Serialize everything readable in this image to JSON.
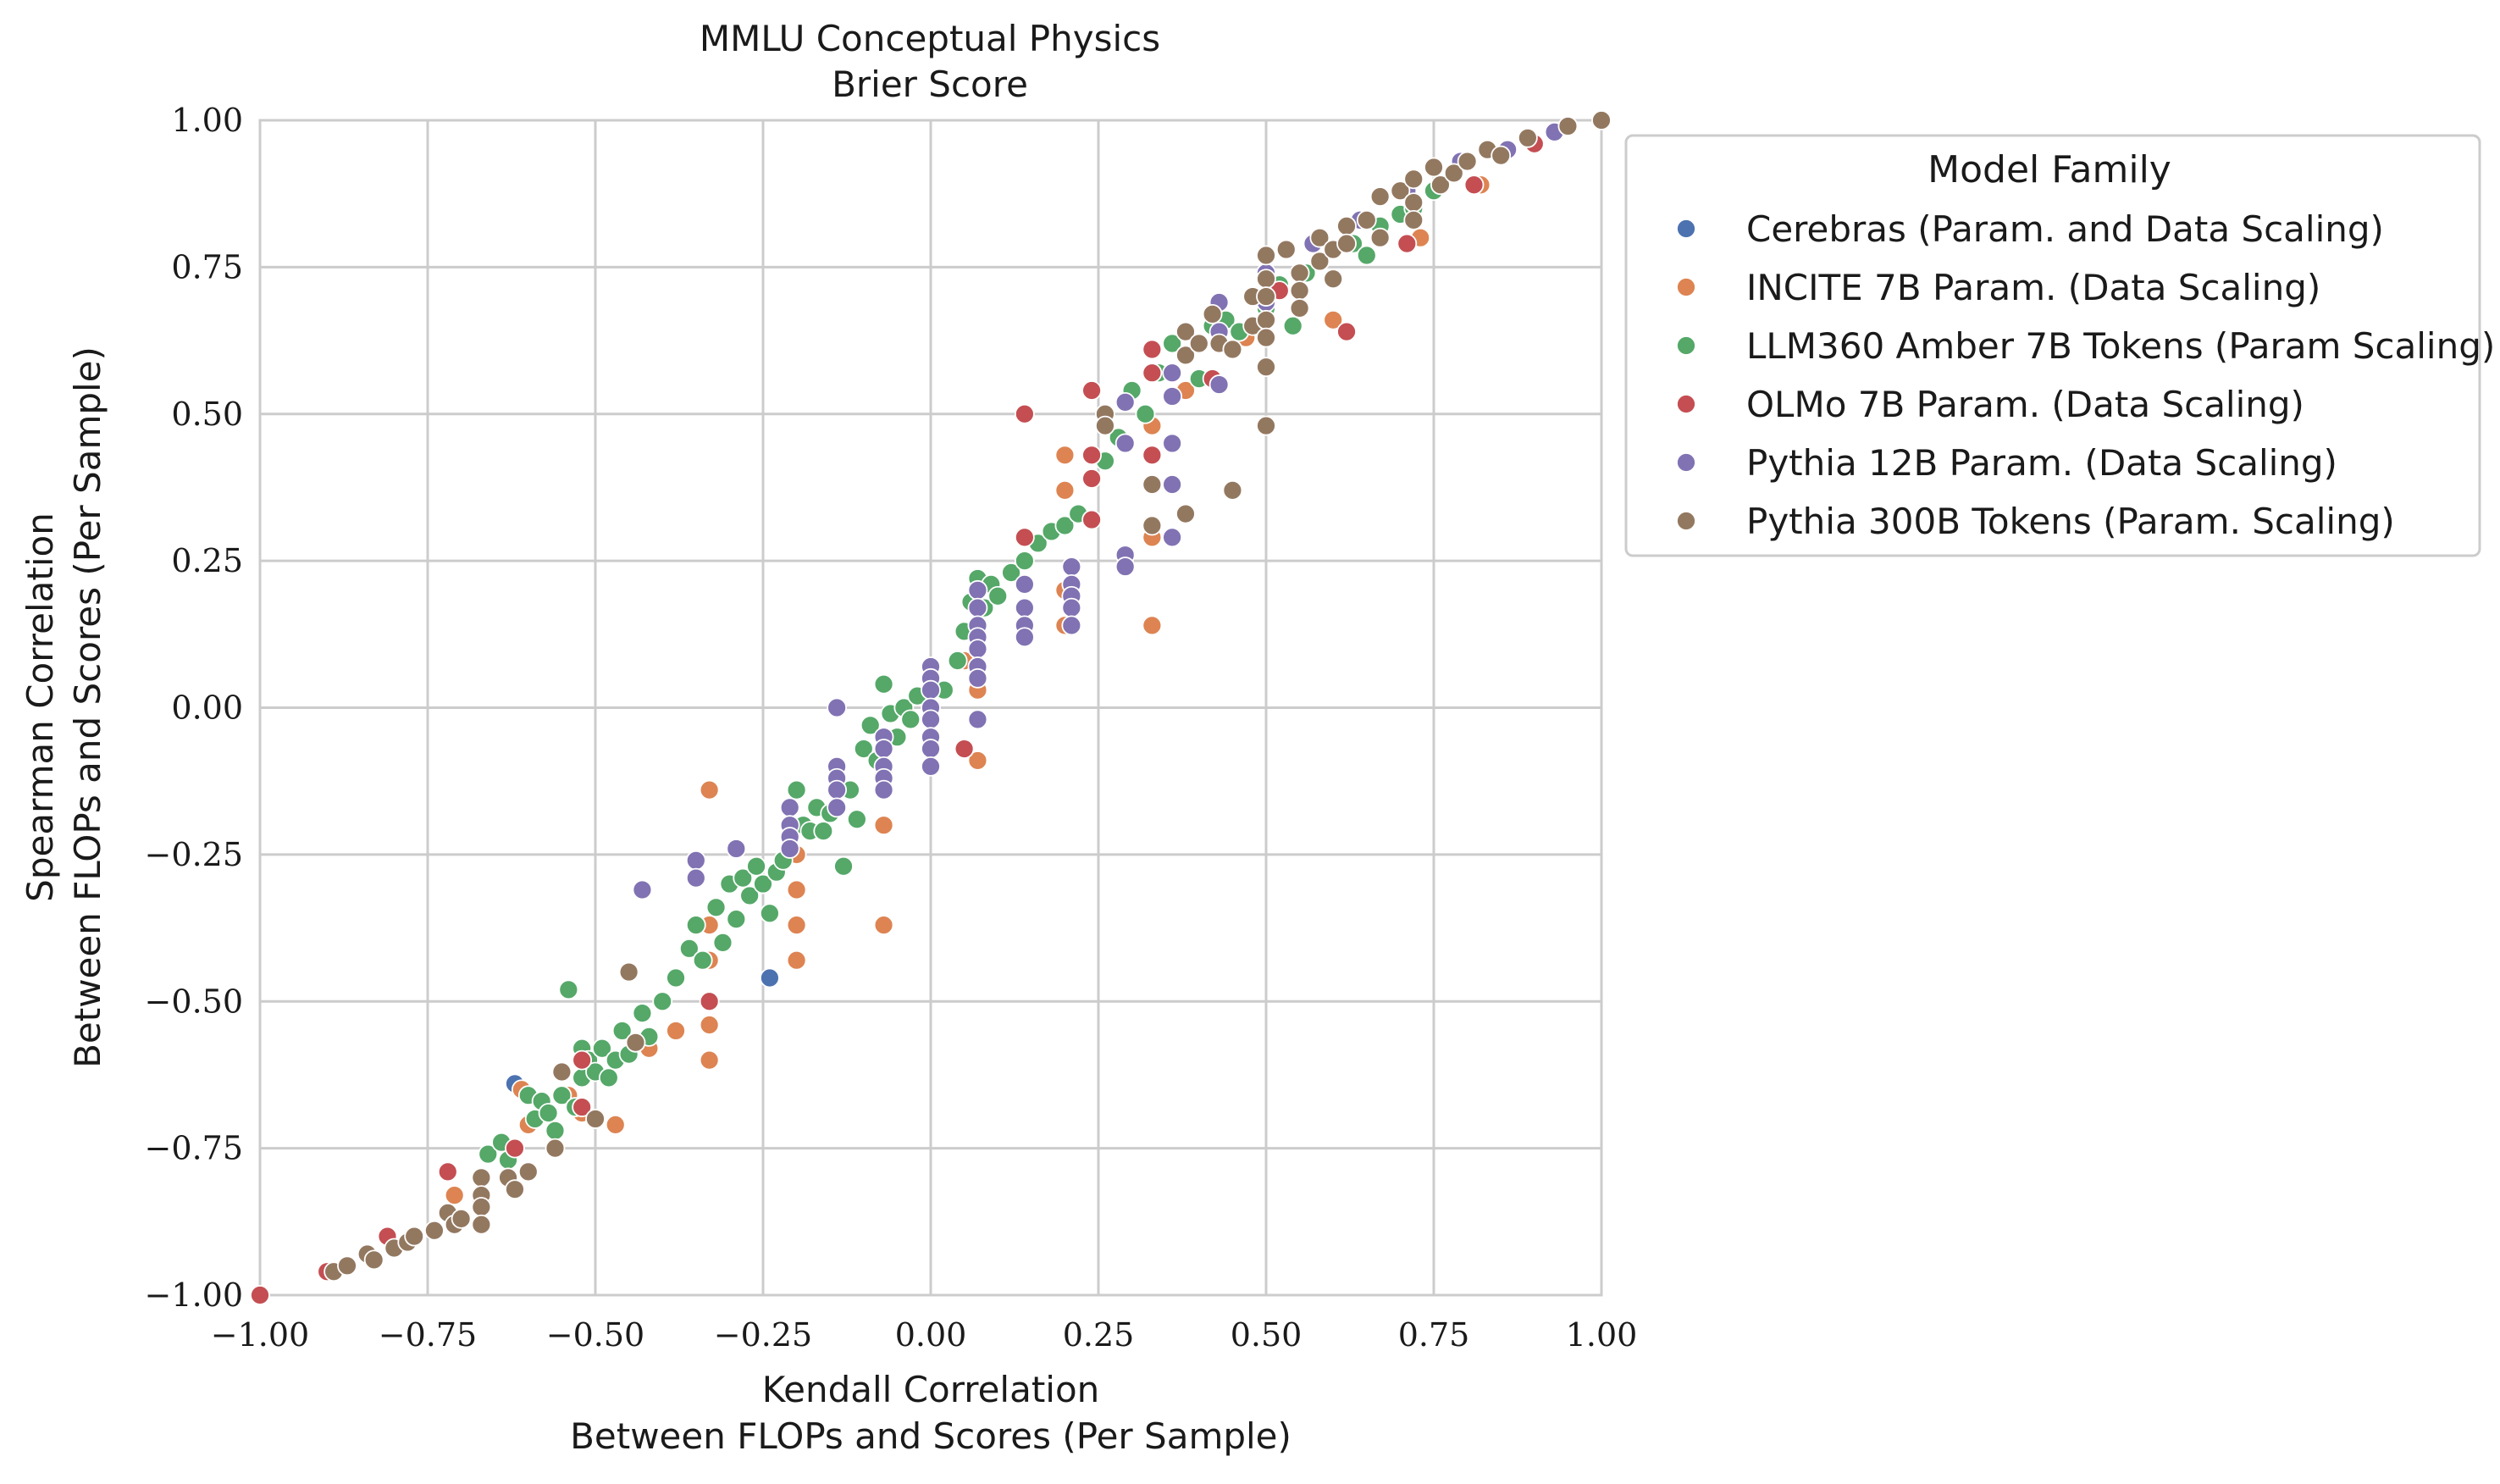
{
  "chart_data": {
    "type": "scatter",
    "title": "MMLU Conceptual Physics",
    "subtitle": "Brier Score",
    "xlabel_line1": "Kendall Correlation",
    "xlabel_line2": "Between FLOPs and Scores (Per Sample)",
    "ylabel_line1": "Spearman Correlation",
    "ylabel_line2": "Between FLOPs and Scores (Per Sample)",
    "xlim": [
      -1.0,
      1.0
    ],
    "ylim": [
      -1.0,
      1.0
    ],
    "xticks": [
      "−1.00",
      "−0.75",
      "−0.50",
      "−0.25",
      "0.00",
      "0.25",
      "0.50",
      "0.75",
      "1.00"
    ],
    "yticks": [
      "−1.00",
      "−0.75",
      "−0.50",
      "−0.25",
      "0.00",
      "0.25",
      "0.50",
      "0.75",
      "1.00"
    ],
    "grid": true,
    "legend_title": "Model Family",
    "legend_position": "outside-right",
    "series": [
      {
        "name": "Cerebras (Param. and Data Scaling)",
        "color": "#4c72b0",
        "points": [
          [
            -0.62,
            -0.64
          ],
          [
            -0.24,
            -0.46
          ]
        ]
      },
      {
        "name": "INCITE 7B Param. (Data Scaling)",
        "color": "#dd8452",
        "points": [
          [
            -0.71,
            -0.83
          ],
          [
            -0.67,
            -0.84
          ],
          [
            -0.61,
            -0.65
          ],
          [
            -0.6,
            -0.71
          ],
          [
            -0.54,
            -0.66
          ],
          [
            -0.52,
            -0.69
          ],
          [
            -0.47,
            -0.71
          ],
          [
            -0.42,
            -0.58
          ],
          [
            -0.38,
            -0.55
          ],
          [
            -0.33,
            -0.14
          ],
          [
            -0.33,
            -0.37
          ],
          [
            -0.33,
            -0.43
          ],
          [
            -0.33,
            -0.54
          ],
          [
            -0.33,
            -0.6
          ],
          [
            -0.2,
            -0.31
          ],
          [
            -0.2,
            -0.37
          ],
          [
            -0.2,
            -0.43
          ],
          [
            -0.2,
            -0.25
          ],
          [
            -0.07,
            -0.2
          ],
          [
            -0.07,
            -0.37
          ],
          [
            -0.07,
            -0.11
          ],
          [
            0.07,
            -0.09
          ],
          [
            0.07,
            0.03
          ],
          [
            0.05,
            0.08
          ],
          [
            0.2,
            0.14
          ],
          [
            0.2,
            0.2
          ],
          [
            0.2,
            0.37
          ],
          [
            0.2,
            0.43
          ],
          [
            0.33,
            0.48
          ],
          [
            0.33,
            0.29
          ],
          [
            0.33,
            0.14
          ],
          [
            0.38,
            0.54
          ],
          [
            0.47,
            0.63
          ],
          [
            0.6,
            0.66
          ],
          [
            0.73,
            0.8
          ],
          [
            0.82,
            0.89
          ]
        ]
      },
      {
        "name": "LLM360 Amber 7B Tokens (Param Scaling)",
        "color": "#55a868",
        "points": [
          [
            -0.66,
            -0.76
          ],
          [
            -0.64,
            -0.74
          ],
          [
            -0.63,
            -0.77
          ],
          [
            -0.6,
            -0.66
          ],
          [
            -0.59,
            -0.7
          ],
          [
            -0.58,
            -0.67
          ],
          [
            -0.57,
            -0.69
          ],
          [
            -0.56,
            -0.72
          ],
          [
            -0.55,
            -0.66
          ],
          [
            -0.54,
            -0.48
          ],
          [
            -0.53,
            -0.68
          ],
          [
            -0.52,
            -0.58
          ],
          [
            -0.52,
            -0.63
          ],
          [
            -0.51,
            -0.6
          ],
          [
            -0.5,
            -0.62
          ],
          [
            -0.49,
            -0.58
          ],
          [
            -0.48,
            -0.63
          ],
          [
            -0.47,
            -0.6
          ],
          [
            -0.46,
            -0.55
          ],
          [
            -0.45,
            -0.59
          ],
          [
            -0.43,
            -0.52
          ],
          [
            -0.42,
            -0.56
          ],
          [
            -0.4,
            -0.5
          ],
          [
            -0.38,
            -0.46
          ],
          [
            -0.36,
            -0.41
          ],
          [
            -0.35,
            -0.37
          ],
          [
            -0.34,
            -0.43
          ],
          [
            -0.32,
            -0.34
          ],
          [
            -0.31,
            -0.4
          ],
          [
            -0.3,
            -0.3
          ],
          [
            -0.29,
            -0.36
          ],
          [
            -0.28,
            -0.29
          ],
          [
            -0.27,
            -0.32
          ],
          [
            -0.26,
            -0.27
          ],
          [
            -0.25,
            -0.3
          ],
          [
            -0.24,
            -0.35
          ],
          [
            -0.23,
            -0.28
          ],
          [
            -0.22,
            -0.26
          ],
          [
            -0.21,
            -0.22
          ],
          [
            -0.2,
            -0.14
          ],
          [
            -0.19,
            -0.2
          ],
          [
            -0.18,
            -0.21
          ],
          [
            -0.17,
            -0.17
          ],
          [
            -0.16,
            -0.21
          ],
          [
            -0.15,
            -0.18
          ],
          [
            -0.14,
            -0.12
          ],
          [
            -0.13,
            -0.27
          ],
          [
            -0.12,
            -0.14
          ],
          [
            -0.11,
            -0.19
          ],
          [
            -0.1,
            -0.07
          ],
          [
            -0.09,
            -0.03
          ],
          [
            -0.08,
            -0.09
          ],
          [
            -0.07,
            0.04
          ],
          [
            -0.06,
            -0.01
          ],
          [
            -0.05,
            -0.05
          ],
          [
            -0.04,
            0.0
          ],
          [
            -0.03,
            -0.02
          ],
          [
            -0.02,
            0.02
          ],
          [
            0.0,
            0.05
          ],
          [
            0.02,
            0.03
          ],
          [
            0.04,
            0.08
          ],
          [
            0.05,
            0.13
          ],
          [
            0.06,
            0.18
          ],
          [
            0.07,
            0.22
          ],
          [
            0.08,
            0.17
          ],
          [
            0.09,
            0.21
          ],
          [
            0.1,
            0.19
          ],
          [
            0.12,
            0.23
          ],
          [
            0.14,
            0.25
          ],
          [
            0.16,
            0.28
          ],
          [
            0.18,
            0.3
          ],
          [
            0.2,
            0.31
          ],
          [
            0.22,
            0.33
          ],
          [
            0.26,
            0.42
          ],
          [
            0.28,
            0.46
          ],
          [
            0.3,
            0.54
          ],
          [
            0.32,
            0.5
          ],
          [
            0.34,
            0.57
          ],
          [
            0.36,
            0.62
          ],
          [
            0.38,
            0.6
          ],
          [
            0.4,
            0.56
          ],
          [
            0.42,
            0.65
          ],
          [
            0.44,
            0.66
          ],
          [
            0.46,
            0.64
          ],
          [
            0.48,
            0.7
          ],
          [
            0.5,
            0.68
          ],
          [
            0.52,
            0.72
          ],
          [
            0.54,
            0.65
          ],
          [
            0.56,
            0.74
          ],
          [
            0.58,
            0.76
          ],
          [
            0.6,
            0.73
          ],
          [
            0.63,
            0.79
          ],
          [
            0.65,
            0.77
          ],
          [
            0.67,
            0.82
          ],
          [
            0.7,
            0.84
          ],
          [
            0.72,
            0.85
          ],
          [
            0.75,
            0.88
          ]
        ]
      },
      {
        "name": "OLMo 7B Param. (Data Scaling)",
        "color": "#c44e52",
        "points": [
          [
            -1.0,
            -1.0
          ],
          [
            -0.9,
            -0.96
          ],
          [
            -0.81,
            -0.9
          ],
          [
            -0.72,
            -0.79
          ],
          [
            -0.62,
            -0.75
          ],
          [
            -0.52,
            -0.6
          ],
          [
            -0.52,
            -0.68
          ],
          [
            -0.33,
            -0.5
          ],
          [
            0.05,
            -0.07
          ],
          [
            0.07,
            0.14
          ],
          [
            0.14,
            0.5
          ],
          [
            0.14,
            0.29
          ],
          [
            0.24,
            0.54
          ],
          [
            0.24,
            0.43
          ],
          [
            0.24,
            0.39
          ],
          [
            0.24,
            0.32
          ],
          [
            0.33,
            0.61
          ],
          [
            0.33,
            0.57
          ],
          [
            0.33,
            0.43
          ],
          [
            0.42,
            0.56
          ],
          [
            0.52,
            0.71
          ],
          [
            0.62,
            0.64
          ],
          [
            0.71,
            0.79
          ],
          [
            0.81,
            0.89
          ],
          [
            0.9,
            0.96
          ]
        ]
      },
      {
        "name": "Pythia 12B Param. (Data Scaling)",
        "color": "#8172b3",
        "points": [
          [
            -0.43,
            -0.31
          ],
          [
            -0.35,
            -0.26
          ],
          [
            -0.35,
            -0.29
          ],
          [
            -0.29,
            -0.24
          ],
          [
            -0.21,
            -0.17
          ],
          [
            -0.21,
            -0.2
          ],
          [
            -0.21,
            -0.22
          ],
          [
            -0.21,
            -0.24
          ],
          [
            -0.14,
            0.0
          ],
          [
            -0.14,
            -0.1
          ],
          [
            -0.14,
            -0.12
          ],
          [
            -0.14,
            -0.14
          ],
          [
            -0.14,
            -0.17
          ],
          [
            -0.07,
            -0.05
          ],
          [
            -0.07,
            -0.07
          ],
          [
            -0.07,
            -0.1
          ],
          [
            -0.07,
            -0.12
          ],
          [
            -0.07,
            -0.14
          ],
          [
            0.0,
            0.07
          ],
          [
            0.0,
            0.05
          ],
          [
            0.0,
            0.03
          ],
          [
            0.0,
            0.0
          ],
          [
            0.0,
            -0.02
          ],
          [
            0.0,
            -0.05
          ],
          [
            0.0,
            -0.07
          ],
          [
            0.0,
            -0.1
          ],
          [
            0.07,
            0.2
          ],
          [
            0.07,
            0.17
          ],
          [
            0.07,
            0.14
          ],
          [
            0.07,
            0.12
          ],
          [
            0.07,
            0.1
          ],
          [
            0.07,
            0.07
          ],
          [
            0.07,
            0.05
          ],
          [
            0.07,
            -0.02
          ],
          [
            0.14,
            0.21
          ],
          [
            0.14,
            0.17
          ],
          [
            0.14,
            0.14
          ],
          [
            0.14,
            0.12
          ],
          [
            0.21,
            0.24
          ],
          [
            0.21,
            0.21
          ],
          [
            0.21,
            0.19
          ],
          [
            0.21,
            0.17
          ],
          [
            0.21,
            0.14
          ],
          [
            0.29,
            0.52
          ],
          [
            0.29,
            0.45
          ],
          [
            0.29,
            0.26
          ],
          [
            0.29,
            0.24
          ],
          [
            0.36,
            0.57
          ],
          [
            0.36,
            0.53
          ],
          [
            0.36,
            0.45
          ],
          [
            0.36,
            0.38
          ],
          [
            0.36,
            0.29
          ],
          [
            0.43,
            0.69
          ],
          [
            0.43,
            0.64
          ],
          [
            0.43,
            0.55
          ],
          [
            0.5,
            0.74
          ],
          [
            0.5,
            0.69
          ],
          [
            0.57,
            0.79
          ],
          [
            0.64,
            0.83
          ],
          [
            0.71,
            0.88
          ],
          [
            0.79,
            0.93
          ],
          [
            0.86,
            0.95
          ],
          [
            0.93,
            0.98
          ]
        ]
      },
      {
        "name": "Pythia 300B Tokens (Param. Scaling)",
        "color": "#937860",
        "points": [
          [
            -0.89,
            -0.96
          ],
          [
            -0.87,
            -0.95
          ],
          [
            -0.84,
            -0.93
          ],
          [
            -0.83,
            -0.94
          ],
          [
            -0.8,
            -0.92
          ],
          [
            -0.78,
            -0.91
          ],
          [
            -0.77,
            -0.9
          ],
          [
            -0.74,
            -0.89
          ],
          [
            -0.72,
            -0.86
          ],
          [
            -0.71,
            -0.88
          ],
          [
            -0.7,
            -0.87
          ],
          [
            -0.67,
            -0.8
          ],
          [
            -0.67,
            -0.83
          ],
          [
            -0.67,
            -0.85
          ],
          [
            -0.67,
            -0.88
          ],
          [
            -0.63,
            -0.8
          ],
          [
            -0.62,
            -0.82
          ],
          [
            -0.6,
            -0.79
          ],
          [
            -0.56,
            -0.75
          ],
          [
            -0.55,
            -0.62
          ],
          [
            -0.5,
            -0.7
          ],
          [
            -0.45,
            -0.45
          ],
          [
            -0.44,
            -0.57
          ],
          [
            0.26,
            0.5
          ],
          [
            0.26,
            0.48
          ],
          [
            0.33,
            0.38
          ],
          [
            0.33,
            0.31
          ],
          [
            0.38,
            0.33
          ],
          [
            0.38,
            0.6
          ],
          [
            0.38,
            0.64
          ],
          [
            0.4,
            0.62
          ],
          [
            0.42,
            0.67
          ],
          [
            0.43,
            0.62
          ],
          [
            0.45,
            0.37
          ],
          [
            0.45,
            0.61
          ],
          [
            0.48,
            0.65
          ],
          [
            0.48,
            0.7
          ],
          [
            0.5,
            0.77
          ],
          [
            0.5,
            0.73
          ],
          [
            0.5,
            0.7
          ],
          [
            0.5,
            0.66
          ],
          [
            0.5,
            0.63
          ],
          [
            0.5,
            0.58
          ],
          [
            0.5,
            0.48
          ],
          [
            0.53,
            0.78
          ],
          [
            0.55,
            0.74
          ],
          [
            0.55,
            0.71
          ],
          [
            0.55,
            0.68
          ],
          [
            0.58,
            0.8
          ],
          [
            0.58,
            0.76
          ],
          [
            0.6,
            0.78
          ],
          [
            0.6,
            0.73
          ],
          [
            0.62,
            0.82
          ],
          [
            0.62,
            0.79
          ],
          [
            0.65,
            0.83
          ],
          [
            0.67,
            0.87
          ],
          [
            0.67,
            0.8
          ],
          [
            0.7,
            0.88
          ],
          [
            0.72,
            0.9
          ],
          [
            0.72,
            0.86
          ],
          [
            0.72,
            0.83
          ],
          [
            0.75,
            0.92
          ],
          [
            0.76,
            0.89
          ],
          [
            0.78,
            0.91
          ],
          [
            0.8,
            0.93
          ],
          [
            0.83,
            0.95
          ],
          [
            0.85,
            0.94
          ],
          [
            0.89,
            0.97
          ],
          [
            0.95,
            0.99
          ],
          [
            1.0,
            1.0
          ]
        ]
      }
    ]
  }
}
